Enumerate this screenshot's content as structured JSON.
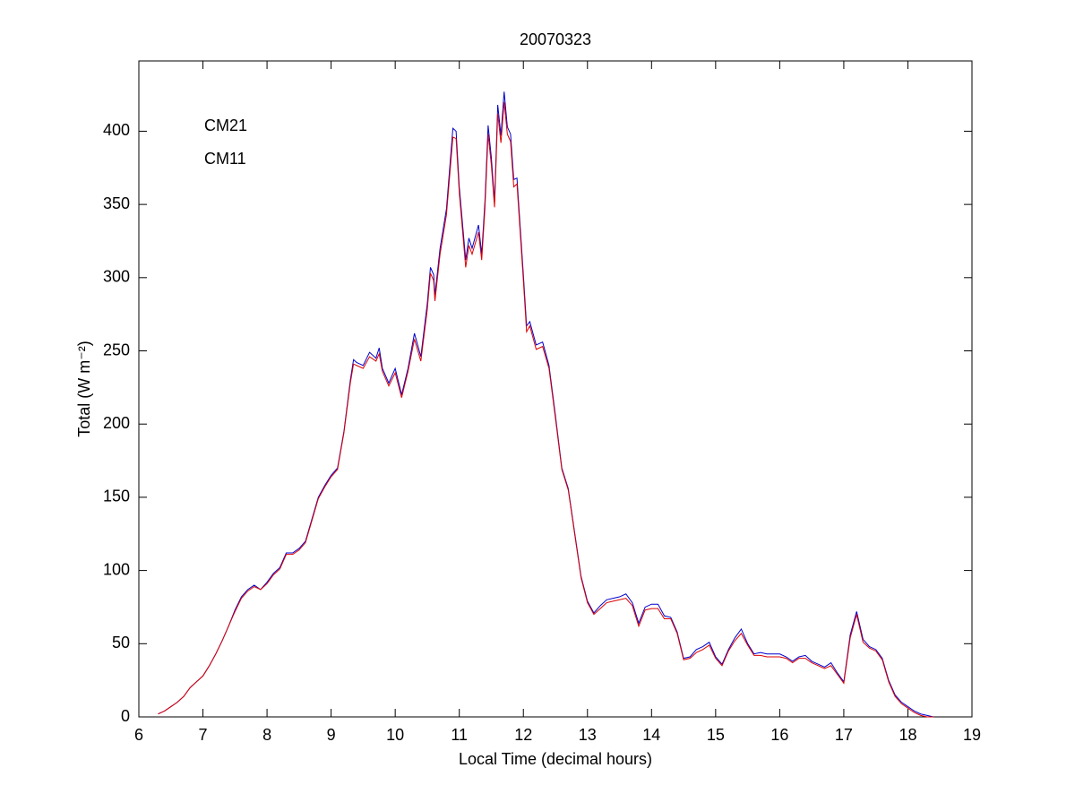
{
  "chart_data": {
    "type": "line",
    "title": "20070323",
    "x_label": "Local Time (decimal hours)",
    "y_label": "Total (W m⁻²)",
    "x": [
      6.3,
      6.4,
      6.5,
      6.6,
      6.7,
      6.8,
      6.9,
      7.0,
      7.1,
      7.2,
      7.3,
      7.4,
      7.5,
      7.6,
      7.7,
      7.8,
      7.9,
      8.0,
      8.1,
      8.2,
      8.3,
      8.4,
      8.5,
      8.6,
      8.7,
      8.8,
      8.9,
      9.0,
      9.1,
      9.2,
      9.3,
      9.35,
      9.4,
      9.5,
      9.6,
      9.7,
      9.75,
      9.8,
      9.9,
      10.0,
      10.1,
      10.2,
      10.3,
      10.4,
      10.5,
      10.55,
      10.6,
      10.62,
      10.7,
      10.8,
      10.9,
      10.95,
      11.0,
      11.1,
      11.15,
      11.2,
      11.3,
      11.35,
      11.4,
      11.45,
      11.5,
      11.55,
      11.6,
      11.65,
      11.7,
      11.75,
      11.8,
      11.85,
      11.9,
      12.0,
      12.05,
      12.1,
      12.2,
      12.3,
      12.4,
      12.5,
      12.6,
      12.7,
      12.8,
      12.9,
      13.0,
      13.1,
      13.2,
      13.3,
      13.4,
      13.5,
      13.6,
      13.7,
      13.8,
      13.9,
      14.0,
      14.1,
      14.2,
      14.3,
      14.4,
      14.5,
      14.6,
      14.7,
      14.8,
      14.9,
      15.0,
      15.1,
      15.2,
      15.3,
      15.4,
      15.5,
      15.6,
      15.7,
      15.8,
      15.9,
      16.0,
      16.1,
      16.2,
      16.3,
      16.4,
      16.5,
      16.6,
      16.7,
      16.8,
      16.9,
      17.0,
      17.1,
      17.2,
      17.3,
      17.4,
      17.5,
      17.6,
      17.7,
      17.8,
      17.9,
      18.0,
      18.1,
      18.2,
      18.3,
      18.4
    ],
    "series": [
      {
        "name": "CM21",
        "color": "#0000cc",
        "values": [
          2,
          4,
          7,
          10,
          14,
          20,
          24,
          28,
          35,
          43,
          52,
          62,
          73,
          82,
          87,
          90,
          87,
          92,
          98,
          102,
          112,
          112,
          115,
          120,
          135,
          150,
          158,
          165,
          170,
          195,
          230,
          244,
          242,
          240,
          249,
          245,
          252,
          238,
          228,
          238,
          220,
          238,
          262,
          246,
          282,
          307,
          302,
          288,
          320,
          347,
          402,
          400,
          362,
          312,
          327,
          320,
          336,
          316,
          352,
          404,
          382,
          352,
          418,
          397,
          427,
          403,
          398,
          367,
          368,
          302,
          267,
          270,
          254,
          256,
          240,
          206,
          170,
          156,
          126,
          96,
          79,
          71,
          76,
          80,
          81,
          82,
          84,
          78,
          64,
          75,
          77,
          77,
          69,
          68,
          58,
          40,
          41,
          46,
          48,
          51,
          41,
          36,
          46,
          54,
          60,
          50,
          43,
          44,
          43,
          43,
          43,
          41,
          38,
          41,
          42,
          38,
          36,
          34,
          37,
          30,
          24,
          56,
          72,
          53,
          48,
          46,
          40,
          25,
          15,
          10,
          7,
          4,
          2,
          1,
          0
        ]
      },
      {
        "name": "CM11",
        "color": "#dd0000",
        "values": [
          2,
          4,
          7,
          10,
          14,
          20,
          24,
          28,
          35,
          43,
          52,
          62,
          72,
          81,
          86,
          89,
          87,
          91,
          97,
          101,
          111,
          111,
          114,
          119,
          134,
          149,
          157,
          164,
          169,
          194,
          228,
          241,
          240,
          238,
          246,
          243,
          248,
          236,
          226,
          235,
          218,
          236,
          258,
          243,
          278,
          303,
          298,
          284,
          316,
          343,
          396,
          395,
          358,
          307,
          322,
          316,
          331,
          312,
          347,
          398,
          377,
          348,
          412,
          392,
          420,
          398,
          393,
          362,
          364,
          298,
          263,
          267,
          251,
          253,
          238,
          204,
          169,
          155,
          125,
          95,
          78,
          70,
          74,
          78,
          79,
          80,
          81,
          76,
          62,
          73,
          74,
          74,
          67,
          67,
          57,
          39,
          40,
          44,
          46,
          49,
          40,
          35,
          45,
          52,
          57,
          49,
          42,
          42,
          41,
          41,
          41,
          40,
          37,
          40,
          40,
          37,
          35,
          33,
          35,
          29,
          23,
          54,
          70,
          51,
          47,
          45,
          39,
          24,
          14,
          9,
          6,
          3,
          1,
          0,
          0
        ]
      }
    ],
    "xlim": [
      6,
      19
    ],
    "ylim": [
      0,
      448
    ],
    "xticks": [
      6,
      7,
      8,
      9,
      10,
      11,
      12,
      13,
      14,
      15,
      16,
      17,
      18,
      19
    ],
    "yticks": [
      0,
      50,
      100,
      150,
      200,
      250,
      300,
      350,
      400
    ],
    "legend": "upper left"
  }
}
